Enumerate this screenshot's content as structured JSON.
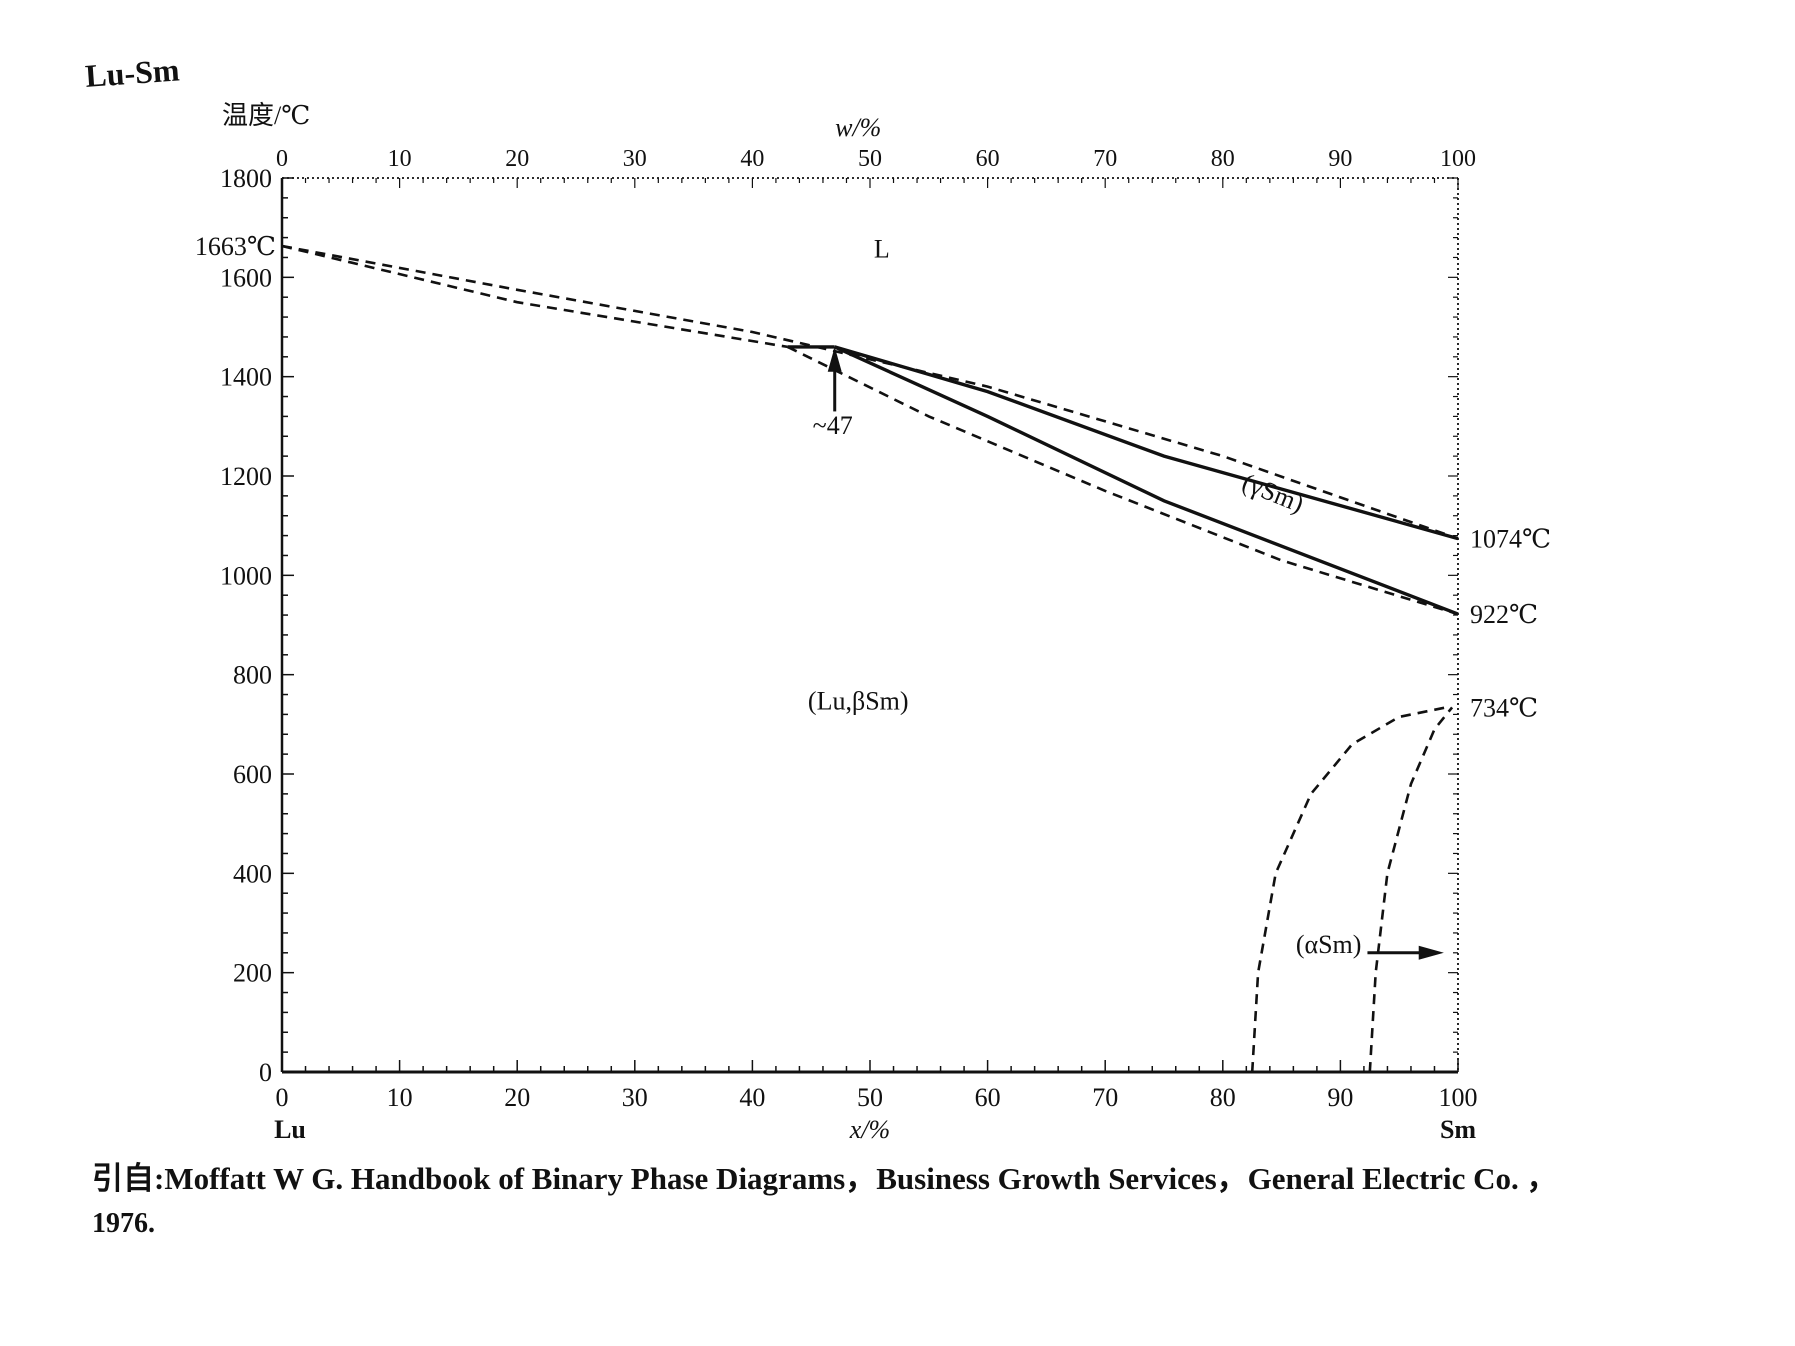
{
  "figure": {
    "system": "Lu-Sm",
    "source_prefix": "引自:",
    "source_text": "Moffatt W G.  Handbook of Binary Phase Diagrams，Business Growth Services，General Electric Co. ，",
    "source_year": "1976."
  },
  "chart_data": {
    "type": "phase_diagram",
    "title": "Lu-Sm",
    "ylabel": "温度/℃",
    "xlabel_bottom": "x/%",
    "xlabel_top": "w/%",
    "xlim": [
      0,
      100
    ],
    "ylim": [
      0,
      1800
    ],
    "yticks": [
      0,
      200,
      400,
      600,
      800,
      1000,
      1200,
      1400,
      1600,
      1800
    ],
    "xticks_bottom": [
      0,
      10,
      20,
      30,
      40,
      50,
      60,
      70,
      80,
      90,
      100
    ],
    "xticks_top": [
      0,
      10,
      20,
      30,
      40,
      50,
      60,
      70,
      80,
      90,
      100
    ],
    "components": {
      "left": "Lu",
      "right": "Sm"
    },
    "phase_labels": [
      {
        "text": "L",
        "x": 51,
        "y": 1640
      },
      {
        "text": "(Lu,βSm)",
        "x": 49,
        "y": 730
      },
      {
        "text": "(γSm)",
        "x": 84,
        "y": 1150
      },
      {
        "text": "(αSm)",
        "x": 89,
        "y": 240
      }
    ],
    "temperature_annotations": [
      {
        "text": "1663℃",
        "x": 0,
        "y": 1663
      },
      {
        "text": "1074℃",
        "x": 100,
        "y": 1074
      },
      {
        "text": "922℃",
        "x": 100,
        "y": 922
      },
      {
        "text": "734℃",
        "x": 100,
        "y": 734
      }
    ],
    "composition_annotation": {
      "text": "~47",
      "x": 47,
      "y": 1450
    },
    "lines": [
      {
        "name": "liquidus",
        "style": "dashed",
        "points": [
          [
            0,
            1663
          ],
          [
            20,
            1575
          ],
          [
            40,
            1490
          ],
          [
            60,
            1380
          ],
          [
            80,
            1240
          ],
          [
            100,
            1074
          ]
        ]
      },
      {
        "name": "solidus",
        "style": "dashed",
        "points": [
          [
            0,
            1663
          ],
          [
            20,
            1550
          ],
          [
            43,
            1460
          ]
        ]
      },
      {
        "name": "peritectic",
        "style": "solid",
        "points": [
          [
            43,
            1460
          ],
          [
            47,
            1460
          ]
        ]
      },
      {
        "name": "peritectic-lower",
        "style": "dashed",
        "points": [
          [
            43,
            1460
          ],
          [
            55,
            1320
          ],
          [
            70,
            1170
          ],
          [
            85,
            1030
          ],
          [
            100,
            922
          ]
        ]
      },
      {
        "name": "gamma-upper",
        "style": "solid",
        "points": [
          [
            47,
            1460
          ],
          [
            60,
            1370
          ],
          [
            75,
            1240
          ],
          [
            100,
            1074
          ]
        ]
      },
      {
        "name": "gamma-lower",
        "style": "solid",
        "points": [
          [
            47,
            1460
          ],
          [
            60,
            1320
          ],
          [
            75,
            1150
          ],
          [
            100,
            922
          ]
        ]
      },
      {
        "name": "alpha-left",
        "style": "dashed",
        "points": [
          [
            82.5,
            0
          ],
          [
            83,
            200
          ],
          [
            84.5,
            400
          ],
          [
            87.5,
            560
          ],
          [
            91,
            660
          ],
          [
            95,
            715
          ],
          [
            99,
            734
          ]
        ]
      },
      {
        "name": "alpha-right",
        "style": "dashed",
        "points": [
          [
            92.5,
            0
          ],
          [
            93,
            200
          ],
          [
            94,
            400
          ],
          [
            96,
            580
          ],
          [
            98,
            690
          ],
          [
            99.5,
            734
          ]
        ]
      }
    ]
  }
}
